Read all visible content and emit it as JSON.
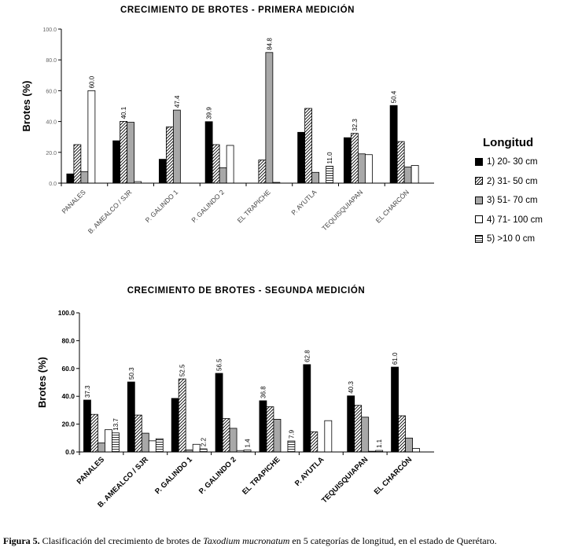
{
  "chart_data": [
    {
      "type": "bar",
      "title": "CRECIMIENTO DE BROTES - PRIMERA MEDICIÓN",
      "ylabel": "Brotes (%)",
      "xlabel": "",
      "ylim": [
        0,
        100
      ],
      "yticks": [
        "0.0",
        "20.0",
        "40.0",
        "60.0",
        "80.0",
        "100.0"
      ],
      "categories": [
        "PANALES",
        "B. AMEALCO / SJR",
        "P. GALINDO 1",
        "P. GALINDO 2",
        "EL TRAPICHE",
        "P. AYUTLA",
        "TEQUISQUIAPAN",
        "EL CHARCÓN"
      ],
      "series": [
        {
          "name": "1)  20- 30  cm",
          "values": [
            6,
            27.5,
            15.5,
            39.9,
            0,
            33,
            29.5,
            50.4
          ]
        },
        {
          "name": "2)  31- 50  cm",
          "values": [
            25,
            40.1,
            36.5,
            25,
            15,
            48.5,
            32.3,
            27
          ]
        },
        {
          "name": "3)  51- 70  cm",
          "values": [
            7.5,
            39.5,
            47.4,
            10,
            84.8,
            7,
            19,
            10.5
          ]
        },
        {
          "name": "4)  71- 100  cm",
          "values": [
            60,
            1,
            0,
            24.5,
            0.5,
            0,
            18.5,
            11.5
          ]
        },
        {
          "name": "5)  >10 0  cm",
          "values": [
            0,
            0,
            0,
            0,
            0,
            11,
            0,
            0
          ]
        }
      ],
      "data_labels": [
        {
          "series": 3,
          "category": 0,
          "text": "60.0"
        },
        {
          "series": 1,
          "category": 1,
          "text": "40.1"
        },
        {
          "series": 2,
          "category": 2,
          "text": "47.4"
        },
        {
          "series": 0,
          "category": 3,
          "text": "39.9"
        },
        {
          "series": 2,
          "category": 4,
          "text": "84.8"
        },
        {
          "series": 4,
          "category": 5,
          "text": "11.0"
        },
        {
          "series": 1,
          "category": 6,
          "text": "32.3"
        },
        {
          "series": 0,
          "category": 7,
          "text": "50.4"
        }
      ]
    },
    {
      "type": "bar",
      "title": "CRECIMIENTO DE BROTES - SEGUNDA MEDICIÓN",
      "ylabel": "Brotes (%)",
      "xlabel": "",
      "ylim": [
        0,
        100
      ],
      "yticks": [
        "0.0",
        "20.0",
        "40.0",
        "60.0",
        "80.0",
        "100.0"
      ],
      "categories": [
        "PANALES",
        "B. AMEALCO / SJR",
        "P. GALINDO 1",
        "P. GALINDO 2",
        "EL TRAPICHE",
        "P. AYUTLA",
        "TEQUISQUIAPAN",
        "EL CHARCÓN"
      ],
      "series": [
        {
          "name": "1)  20- 30  cm",
          "values": [
            37.3,
            50.3,
            38.5,
            56.5,
            36.8,
            62.8,
            40.3,
            61.0
          ]
        },
        {
          "name": "2)  31- 50  cm",
          "values": [
            27,
            26.5,
            52.5,
            24,
            32.5,
            14.5,
            33.5,
            26
          ]
        },
        {
          "name": "3)  51- 70  cm",
          "values": [
            6.5,
            13.5,
            1.5,
            17,
            23.5,
            0,
            25,
            10
          ]
        },
        {
          "name": "4)  71- 100  cm",
          "values": [
            16,
            8,
            5.5,
            1,
            0,
            22.5,
            0.5,
            2.5
          ]
        },
        {
          "name": "5)  >10 0  cm",
          "values": [
            13.7,
            9.5,
            2.2,
            1.4,
            7.9,
            0,
            1.1,
            0
          ]
        }
      ],
      "data_labels": [
        {
          "series": 0,
          "category": 0,
          "text": "37.3"
        },
        {
          "series": 4,
          "category": 0,
          "text": "13.7"
        },
        {
          "series": 0,
          "category": 1,
          "text": "50.3"
        },
        {
          "series": 1,
          "category": 2,
          "text": "52.5"
        },
        {
          "series": 4,
          "category": 2,
          "text": "2.2"
        },
        {
          "series": 0,
          "category": 3,
          "text": "56.5"
        },
        {
          "series": 4,
          "category": 3,
          "text": "1.4"
        },
        {
          "series": 0,
          "category": 4,
          "text": "36.8"
        },
        {
          "series": 4,
          "category": 4,
          "text": "7.9"
        },
        {
          "series": 0,
          "category": 5,
          "text": "62.8"
        },
        {
          "series": 0,
          "category": 6,
          "text": "40.3"
        },
        {
          "series": 4,
          "category": 6,
          "text": "1.1"
        },
        {
          "series": 0,
          "category": 7,
          "text": "61.0"
        }
      ]
    }
  ],
  "legend": {
    "title": "Longitud",
    "items": [
      "1)  20- 30  cm",
      "2)  31- 50  cm",
      "3)  51- 70  cm",
      "4)  71- 100  cm",
      "5)  >10 0  cm"
    ]
  },
  "caption": {
    "label": "Figura 5.",
    "text_before": " Clasificación del crecimiento de brotes de ",
    "species": "Taxodium mucronatum",
    "text_after": " en 5 categorías de longitud, en el estado de Querétaro."
  }
}
